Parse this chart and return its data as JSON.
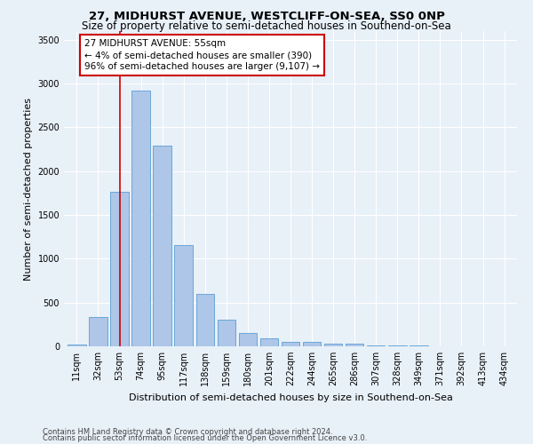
{
  "title": "27, MIDHURST AVENUE, WESTCLIFF-ON-SEA, SS0 0NP",
  "subtitle": "Size of property relative to semi-detached houses in Southend-on-Sea",
  "xlabel": "Distribution of semi-detached houses by size in Southend-on-Sea",
  "ylabel": "Number of semi-detached properties",
  "footnote1": "Contains HM Land Registry data © Crown copyright and database right 2024.",
  "footnote2": "Contains public sector information licensed under the Open Government Licence v3.0.",
  "bar_labels": [
    "11sqm",
    "32sqm",
    "53sqm",
    "74sqm",
    "95sqm",
    "117sqm",
    "138sqm",
    "159sqm",
    "180sqm",
    "201sqm",
    "222sqm",
    "244sqm",
    "265sqm",
    "286sqm",
    "307sqm",
    "328sqm",
    "349sqm",
    "371sqm",
    "392sqm",
    "413sqm",
    "434sqm"
  ],
  "bar_values": [
    20,
    330,
    1760,
    2920,
    2290,
    1160,
    595,
    305,
    150,
    95,
    55,
    50,
    35,
    30,
    15,
    10,
    8,
    5,
    3,
    2,
    1
  ],
  "bar_color": "#aec6e8",
  "bar_edgecolor": "#5a9fd4",
  "vline_color": "#cc0000",
  "annotation_text": "27 MIDHURST AVENUE: 55sqm\n← 4% of semi-detached houses are smaller (390)\n96% of semi-detached houses are larger (9,107) →",
  "annotation_box_edgecolor": "#cc0000",
  "annotation_box_facecolor": "#ffffff",
  "ylim": [
    0,
    3600
  ],
  "yticks": [
    0,
    500,
    1000,
    1500,
    2000,
    2500,
    3000,
    3500
  ],
  "bg_color": "#e8f0f8",
  "title_fontsize": 9.5,
  "subtitle_fontsize": 8.5,
  "xlabel_fontsize": 8,
  "ylabel_fontsize": 8,
  "tick_fontsize": 7,
  "annotation_fontsize": 7.5
}
